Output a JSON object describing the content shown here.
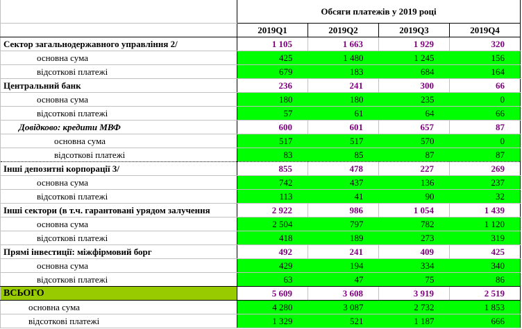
{
  "table": {
    "title": "Обсяги платежів у 2019 році",
    "quarters": [
      "2019Q1",
      "2019Q2",
      "2019Q3",
      "2019Q4"
    ],
    "rows": [
      {
        "label": "Сектор загальнодержавного управління 2/",
        "type": "sec",
        "values": [
          "1 105",
          "1 663",
          "1 929",
          "320"
        ]
      },
      {
        "label": "основна сума",
        "type": "sub",
        "values": [
          "425",
          "1 480",
          "1 245",
          "156"
        ]
      },
      {
        "label": "відсоткові платежі",
        "type": "sub",
        "values": [
          "679",
          "183",
          "684",
          "164"
        ]
      },
      {
        "label": "Центральний банк",
        "type": "sec",
        "values": [
          "236",
          "241",
          "300",
          "66"
        ]
      },
      {
        "label": "основна сума",
        "type": "sub",
        "values": [
          "180",
          "180",
          "235",
          "0"
        ]
      },
      {
        "label": "відсоткові платежі",
        "type": "sub",
        "values": [
          "57",
          "61",
          "64",
          "66"
        ]
      },
      {
        "label": "Довідково: кредити МВФ",
        "type": "memo",
        "values": [
          "600",
          "601",
          "657",
          "87"
        ]
      },
      {
        "label": "основна сума",
        "type": "memo-sub",
        "values": [
          "517",
          "517",
          "570",
          "0"
        ]
      },
      {
        "label": "відсоткові платежі",
        "type": "memo-sub",
        "values": [
          "83",
          "85",
          "87",
          "87"
        ]
      },
      {
        "label": "Інші депозитні корпорації 3/",
        "type": "sec",
        "values": [
          "855",
          "478",
          "227",
          "269"
        ]
      },
      {
        "label": "основна сума",
        "type": "sub",
        "values": [
          "742",
          "437",
          "136",
          "237"
        ]
      },
      {
        "label": "відсоткові платежі",
        "type": "sub",
        "values": [
          "113",
          "41",
          "90",
          "32"
        ]
      },
      {
        "label": "Інші сектори (в т.ч. гарантовані урядом залучення",
        "type": "sec",
        "values": [
          "2 922",
          "986",
          "1 054",
          "1 439"
        ]
      },
      {
        "label": "основна сума",
        "type": "sub",
        "values": [
          "2 504",
          "797",
          "782",
          "1 120"
        ]
      },
      {
        "label": "відсоткові платежі",
        "type": "sub",
        "values": [
          "418",
          "189",
          "273",
          "319"
        ]
      },
      {
        "label": "Прямі інвестиції: міжфірмовий борг",
        "type": "sec",
        "values": [
          "492",
          "241",
          "409",
          "425"
        ]
      },
      {
        "label": "основна сума",
        "type": "sub",
        "values": [
          "429",
          "194",
          "334",
          "340"
        ]
      },
      {
        "label": "відсоткові платежі",
        "type": "sub",
        "values": [
          "63",
          "47",
          "75",
          "86"
        ]
      },
      {
        "label": "ВСЬОГО",
        "type": "total",
        "values": [
          "5 609",
          "3 608",
          "3 919",
          "2 519"
        ]
      },
      {
        "label": "основна сума",
        "type": "total-sub",
        "values": [
          "4 280",
          "3 087",
          "2 732",
          "1 853"
        ]
      },
      {
        "label": "відсоткові платежі",
        "type": "total-sub",
        "values": [
          "1 329",
          "521",
          "1 187",
          "666"
        ]
      }
    ]
  },
  "colors": {
    "section_value_text": "#800080",
    "value_fill": "#00ff00",
    "total_label_fill": "#99cc00",
    "gridline": "#c0c0c0"
  }
}
